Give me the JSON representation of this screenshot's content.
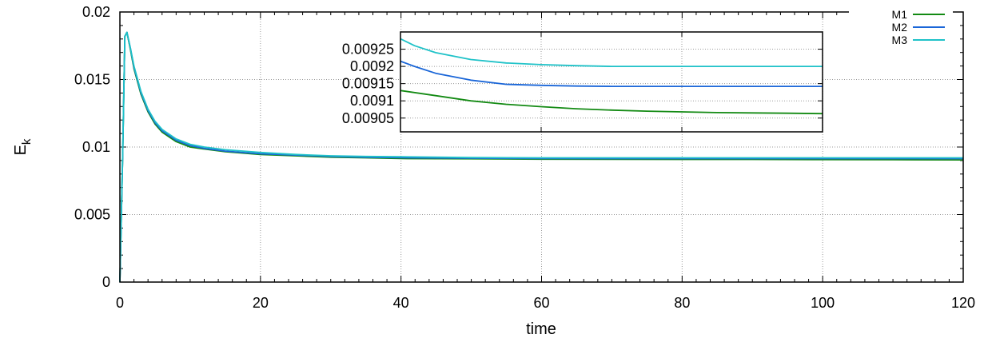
{
  "chart_data": [
    {
      "type": "line",
      "xlabel": "time",
      "ylabel_main": "E",
      "ylabel_sub": "k",
      "xlim": [
        0,
        120
      ],
      "ylim": [
        0,
        0.02
      ],
      "x_ticks": [
        0,
        20,
        40,
        60,
        80,
        100,
        120
      ],
      "y_ticks": [
        0,
        0.005,
        0.01,
        0.015,
        0.02
      ],
      "x_tick_labels": [
        "0",
        "20",
        "40",
        "60",
        "80",
        "100",
        "120"
      ],
      "y_tick_labels": [
        "0",
        "0.005",
        "0.01",
        "0.015",
        "0.02"
      ],
      "grid": true,
      "legend_position": "top-right",
      "series": [
        {
          "name": "M1",
          "color": "#138a13",
          "x": [
            0,
            0.4,
            0.7,
            1,
            1.5,
            2,
            3,
            4,
            5,
            6,
            8,
            10,
            12,
            15,
            20,
            25,
            30,
            35,
            40,
            50,
            60,
            70,
            80,
            90,
            100,
            110,
            120
          ],
          "y": [
            0,
            0.0095,
            0.0182,
            0.0185,
            0.0172,
            0.0158,
            0.0139,
            0.0126,
            0.0117,
            0.0111,
            0.0104,
            0.01,
            0.00985,
            0.00965,
            0.00945,
            0.00935,
            0.00925,
            0.0092,
            0.00915,
            0.00913,
            0.0091,
            0.00909,
            0.00908,
            0.00908,
            0.00907,
            0.00906,
            0.00905
          ]
        },
        {
          "name": "M2",
          "color": "#1a66d8",
          "x": [
            0,
            0.4,
            0.7,
            1,
            1.5,
            2,
            3,
            4,
            5,
            6,
            8,
            10,
            12,
            15,
            20,
            25,
            30,
            35,
            40,
            50,
            60,
            70,
            80,
            90,
            100,
            110,
            120
          ],
          "y": [
            0,
            0.0095,
            0.0182,
            0.0185,
            0.0173,
            0.0159,
            0.014,
            0.0127,
            0.0118,
            0.0112,
            0.0105,
            0.0101,
            0.0099,
            0.0097,
            0.0095,
            0.0094,
            0.0093,
            0.00924,
            0.00921,
            0.00917,
            0.00915,
            0.00914,
            0.00914,
            0.00914,
            0.00914,
            0.00914,
            0.00914
          ]
        },
        {
          "name": "M3",
          "color": "#1fc2c8",
          "x": [
            0,
            0.4,
            0.7,
            1,
            1.5,
            2,
            3,
            4,
            5,
            6,
            8,
            10,
            12,
            15,
            20,
            25,
            30,
            35,
            40,
            50,
            60,
            70,
            80,
            90,
            100,
            110,
            120
          ],
          "y": [
            0,
            0.0095,
            0.0182,
            0.0185,
            0.0173,
            0.016,
            0.0141,
            0.0128,
            0.0119,
            0.0113,
            0.0106,
            0.0102,
            0.01,
            0.0098,
            0.0096,
            0.00945,
            0.00935,
            0.0093,
            0.00928,
            0.00922,
            0.0092,
            0.0092,
            0.0092,
            0.0092,
            0.0092,
            0.0092,
            0.0092
          ]
        }
      ]
    },
    {
      "type": "line",
      "xlim": [
        40,
        100
      ],
      "ylim": [
        0.00901,
        0.0093
      ],
      "y_ticks": [
        0.00905,
        0.0091,
        0.00915,
        0.0092,
        0.00925
      ],
      "y_tick_labels": [
        "0.00905",
        "0.0091",
        "0.00915",
        "0.0092",
        "0.00925"
      ],
      "grid": true,
      "series": [
        {
          "name": "M1",
          "color": "#138a13",
          "x": [
            40,
            45,
            50,
            55,
            60,
            65,
            70,
            75,
            80,
            85,
            90,
            95,
            100
          ],
          "y": [
            0.00913,
            0.009115,
            0.0091,
            0.00909,
            0.009083,
            0.009077,
            0.009073,
            0.00907,
            0.009068,
            0.009066,
            0.009065,
            0.009064,
            0.009063
          ]
        },
        {
          "name": "M2",
          "color": "#1a66d8",
          "x": [
            40,
            42,
            45,
            50,
            55,
            60,
            65,
            70,
            80,
            90,
            100
          ],
          "y": [
            0.009215,
            0.0092,
            0.00918,
            0.00916,
            0.009148,
            0.009145,
            0.009143,
            0.009142,
            0.009142,
            0.009142,
            0.009142
          ]
        },
        {
          "name": "M3",
          "color": "#1fc2c8",
          "x": [
            40,
            42,
            45,
            50,
            55,
            60,
            65,
            70,
            80,
            90,
            100
          ],
          "y": [
            0.00928,
            0.00926,
            0.00924,
            0.00922,
            0.00921,
            0.009205,
            0.009202,
            0.0092,
            0.0092,
            0.0092,
            0.0092
          ]
        }
      ]
    }
  ]
}
